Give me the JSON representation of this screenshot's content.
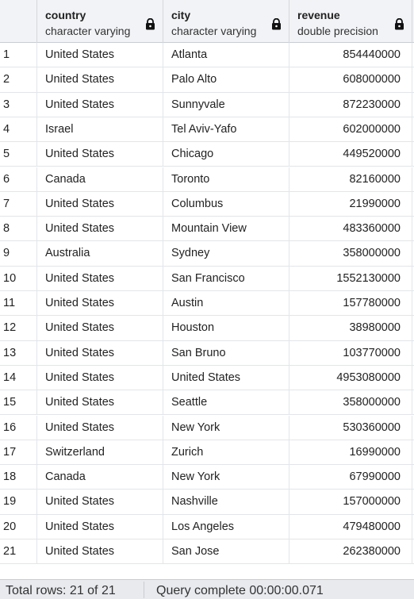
{
  "columns": [
    {
      "name": "country",
      "type": "character varying",
      "lock_icon": "lock-icon"
    },
    {
      "name": "city",
      "type": "character varying",
      "lock_icon": "lock-icon"
    },
    {
      "name": "revenue",
      "type": "double precision",
      "lock_icon": "lock-icon"
    }
  ],
  "rows": [
    {
      "n": "1",
      "country": "United States",
      "city": "Atlanta",
      "revenue": "854440000"
    },
    {
      "n": "2",
      "country": "United States",
      "city": "Palo Alto",
      "revenue": "608000000"
    },
    {
      "n": "3",
      "country": "United States",
      "city": "Sunnyvale",
      "revenue": "872230000"
    },
    {
      "n": "4",
      "country": "Israel",
      "city": "Tel Aviv-Yafo",
      "revenue": "602000000"
    },
    {
      "n": "5",
      "country": "United States",
      "city": "Chicago",
      "revenue": "449520000"
    },
    {
      "n": "6",
      "country": "Canada",
      "city": "Toronto",
      "revenue": "82160000"
    },
    {
      "n": "7",
      "country": "United States",
      "city": "Columbus",
      "revenue": "21990000"
    },
    {
      "n": "8",
      "country": "United States",
      "city": "Mountain View",
      "revenue": "483360000"
    },
    {
      "n": "9",
      "country": "Australia",
      "city": "Sydney",
      "revenue": "358000000"
    },
    {
      "n": "10",
      "country": "United States",
      "city": "San Francisco",
      "revenue": "1552130000"
    },
    {
      "n": "11",
      "country": "United States",
      "city": "Austin",
      "revenue": "157780000"
    },
    {
      "n": "12",
      "country": "United States",
      "city": "Houston",
      "revenue": "38980000"
    },
    {
      "n": "13",
      "country": "United States",
      "city": "San Bruno",
      "revenue": "103770000"
    },
    {
      "n": "14",
      "country": "United States",
      "city": "United States",
      "revenue": "4953080000"
    },
    {
      "n": "15",
      "country": "United States",
      "city": "Seattle",
      "revenue": "358000000"
    },
    {
      "n": "16",
      "country": "United States",
      "city": "New York",
      "revenue": "530360000"
    },
    {
      "n": "17",
      "country": "Switzerland",
      "city": "Zurich",
      "revenue": "16990000"
    },
    {
      "n": "18",
      "country": "Canada",
      "city": "New York",
      "revenue": "67990000"
    },
    {
      "n": "19",
      "country": "United States",
      "city": "Nashville",
      "revenue": "157000000"
    },
    {
      "n": "20",
      "country": "United States",
      "city": "Los Angeles",
      "revenue": "479480000"
    },
    {
      "n": "21",
      "country": "United States",
      "city": "San Jose",
      "revenue": "262380000"
    }
  ],
  "status": {
    "total_rows": "Total rows: 21 of 21",
    "query": "Query complete 00:00:00.071"
  }
}
